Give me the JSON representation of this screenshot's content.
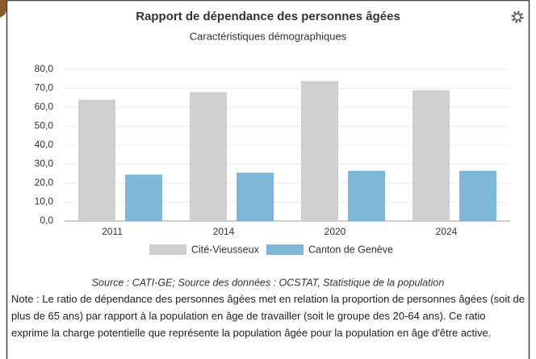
{
  "chart_data": {
    "type": "bar",
    "title": "Rapport de dépendance des personnes âgées",
    "subtitle": "Caractéristiques démographiques",
    "categories": [
      "2011",
      "2014",
      "2020",
      "2024"
    ],
    "series": [
      {
        "name": "Cité-Vieusseux",
        "color": "#cfcfcf",
        "values": [
          64,
          68,
          73.8,
          69
        ]
      },
      {
        "name": "Canton de Genève",
        "color": "#7db8d8",
        "values": [
          24.5,
          25.5,
          26.5,
          26.5
        ]
      }
    ],
    "ylim": [
      0,
      80
    ],
    "yticks": [
      {
        "value": 0,
        "label": "0,0"
      },
      {
        "value": 10,
        "label": "10,0"
      },
      {
        "value": 20,
        "label": "20,0"
      },
      {
        "value": 30,
        "label": "30,0"
      },
      {
        "value": 40,
        "label": "40,0"
      },
      {
        "value": 50,
        "label": "50,0"
      },
      {
        "value": 60,
        "label": "60,0"
      },
      {
        "value": 70,
        "label": "70,0"
      },
      {
        "value": 80,
        "label": "80,0"
      }
    ],
    "grid": true,
    "legend": "bottom",
    "source": "Source : CATI-GE; Source des données : OCSTAT, Statistique de la population"
  },
  "note": "Note : Le ratio de dépendance des personnes âgées met en relation la proportion de personnes âgées (soit de plus de 65 ans) par rapport à la population en âge de travailler (soit le groupe des 20-64 ans). Ce ratio exprime la charge potentielle que représente la population âgée pour la population en âge d'être active."
}
